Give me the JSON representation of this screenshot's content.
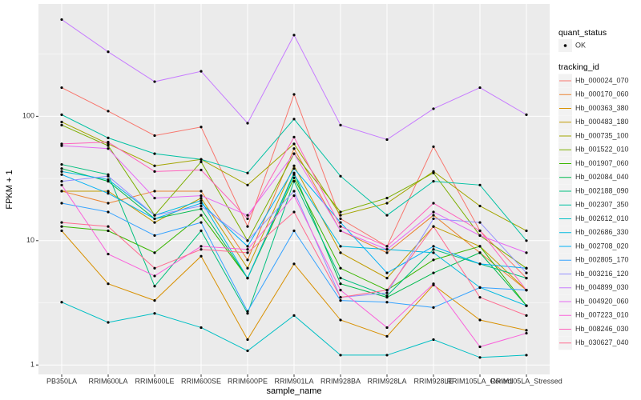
{
  "chart_data": {
    "type": "line",
    "x_label": "sample_name",
    "y_label": "FPKM + 1",
    "y_scale": "log",
    "grid": true,
    "categories": [
      "PB350LA",
      "RRIM600LA",
      "RRIM600LE",
      "RRIM600SE",
      "RRIM600PE",
      "RRIM901LA",
      "RRIM928BA",
      "RRIM928LA",
      "RRIM928LE",
      "RRIM105LA_Control",
      "RRIM105LA_Stressed"
    ],
    "ylim": [
      0.84,
      800
    ],
    "yticks": [
      1,
      10,
      100
    ],
    "point_legend_title": "quant_status",
    "point_legend_entries": [
      "OK"
    ],
    "legend_title": "tracking_id",
    "legend_position": "right",
    "series": [
      {
        "name": "Hb_000024_070",
        "color": "#F8766D",
        "values": [
          170,
          110,
          70,
          82,
          13,
          150,
          15,
          9,
          57,
          12,
          5
        ]
      },
      {
        "name": "Hb_000170_060",
        "color": "#EA8331",
        "values": [
          25,
          20,
          25,
          25,
          7,
          55,
          12,
          8,
          16,
          8,
          4
        ]
      },
      {
        "name": "Hb_000363_380",
        "color": "#D89000",
        "values": [
          12,
          4.5,
          3.3,
          7.5,
          1.6,
          6.5,
          2.3,
          1.7,
          4.4,
          2.3,
          1.9
        ]
      },
      {
        "name": "Hb_000483_180",
        "color": "#C09B00",
        "values": [
          25,
          25,
          14,
          22,
          6,
          40,
          8,
          5,
          13,
          9,
          4
        ]
      },
      {
        "name": "Hb_000735_100",
        "color": "#A3A500",
        "values": [
          90,
          60,
          40,
          45,
          28,
          60,
          16,
          20,
          36,
          19,
          12
        ]
      },
      {
        "name": "Hb_001522_010",
        "color": "#7CAE00",
        "values": [
          85,
          58,
          16,
          43,
          10,
          50,
          17,
          22,
          35,
          11,
          6
        ]
      },
      {
        "name": "Hb_001907_060",
        "color": "#39B600",
        "values": [
          13,
          12,
          8,
          16,
          5,
          32,
          6,
          4,
          7,
          9,
          3
        ]
      },
      {
        "name": "Hb_002084_040",
        "color": "#00BB4E",
        "values": [
          38,
          30,
          15,
          18,
          5,
          35,
          4.5,
          3.5,
          5.5,
          8,
          3
        ]
      },
      {
        "name": "Hb_002188_090",
        "color": "#00BF7D",
        "values": [
          41,
          34,
          4.3,
          12,
          2.6,
          30,
          5,
          3.6,
          8.5,
          6.5,
          5
        ]
      },
      {
        "name": "Hb_002307_350",
        "color": "#00C1A3",
        "values": [
          103,
          67,
          50,
          45,
          35,
          95,
          33,
          16,
          30,
          28,
          10
        ]
      },
      {
        "name": "Hb_002612_010",
        "color": "#00BFC4",
        "values": [
          3.2,
          2.2,
          2.6,
          2.0,
          1.3,
          2.5,
          1.2,
          1.2,
          1.6,
          1.15,
          1.2
        ]
      },
      {
        "name": "Hb_002686_330",
        "color": "#00BAE0",
        "values": [
          36,
          31,
          16,
          21,
          5,
          34,
          9,
          8.5,
          8,
          4.2,
          3
        ]
      },
      {
        "name": "Hb_002708_020",
        "color": "#00B0F6",
        "values": [
          34,
          24,
          15,
          20,
          9,
          38,
          14,
          5.5,
          9,
          6.5,
          6
        ]
      },
      {
        "name": "Hb_002805_170",
        "color": "#35A2FF",
        "values": [
          20,
          17,
          11,
          14,
          2.7,
          12,
          3.3,
          3.2,
          2.9,
          4.2,
          4
        ]
      },
      {
        "name": "Hb_003216_120",
        "color": "#9590FF",
        "values": [
          30,
          33,
          16,
          19,
          10,
          25,
          3.5,
          3.8,
          15,
          14,
          5.5
        ]
      },
      {
        "name": "Hb_004899_030",
        "color": "#C77CFF",
        "values": [
          600,
          330,
          190,
          230,
          88,
          450,
          85,
          65,
          115,
          170,
          103
        ]
      },
      {
        "name": "Hb_004920_060",
        "color": "#E76BF3",
        "values": [
          58,
          55,
          22,
          23,
          16,
          50,
          12,
          8.5,
          17,
          11,
          8
        ]
      },
      {
        "name": "Hb_007223_010",
        "color": "#FA62DB",
        "values": [
          28,
          7.8,
          5.2,
          9,
          8.5,
          23,
          4,
          2,
          4.5,
          1.4,
          1.8
        ]
      },
      {
        "name": "Hb_008246_030",
        "color": "#FF62BC",
        "values": [
          60,
          62,
          36,
          37,
          15,
          68,
          13,
          9,
          20,
          12,
          4
        ]
      },
      {
        "name": "Hb_030627_040",
        "color": "#FF6C90",
        "values": [
          14,
          13,
          6,
          8.5,
          8,
          17,
          3.5,
          4,
          13,
          3.5,
          2.5
        ]
      }
    ]
  }
}
